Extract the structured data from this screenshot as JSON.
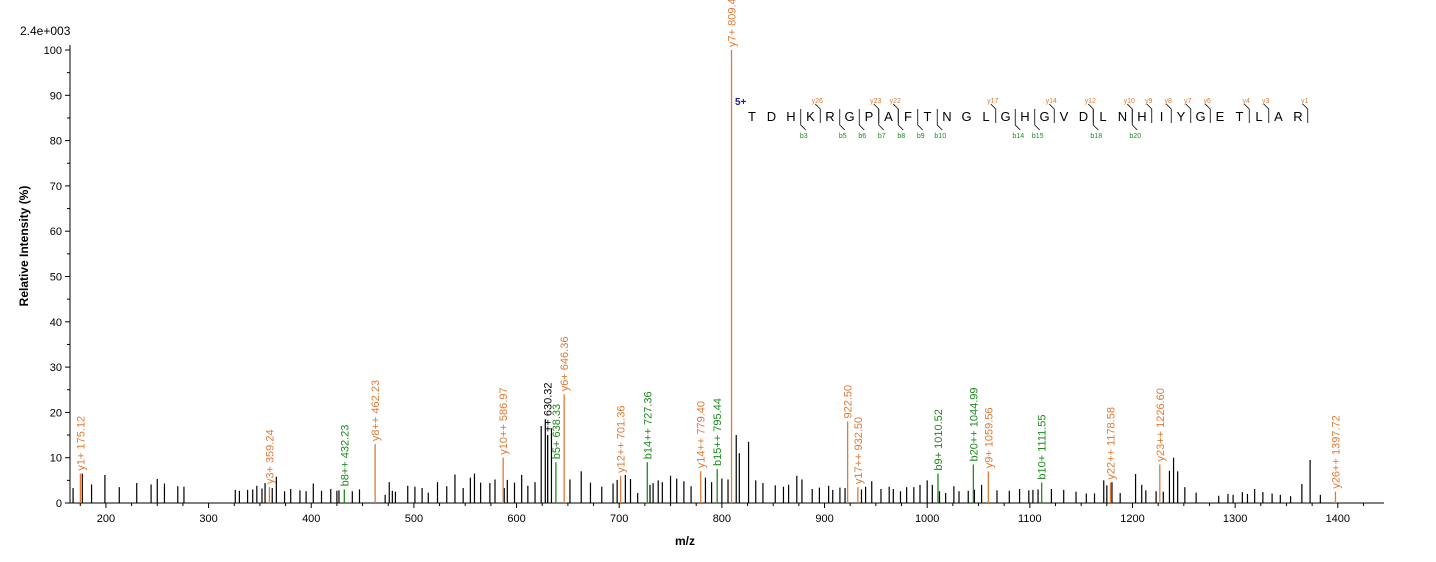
{
  "colors": {
    "y": "#e07a35",
    "b": "#1e8a1e",
    "other": "#000000",
    "charge": "#1a1aa0"
  },
  "chart_data": {
    "type": "bar",
    "scale_label": "2.4e+003",
    "xlabel": "m/z",
    "ylabel": "Relative Intensity (%)",
    "xlim": [
      165,
      1445
    ],
    "ylim": [
      0,
      100
    ],
    "x_ticks": [
      200,
      300,
      400,
      500,
      600,
      700,
      800,
      900,
      1000,
      1100,
      1200,
      1300,
      1400
    ],
    "y_ticks": [
      0,
      10,
      20,
      30,
      40,
      50,
      60,
      70,
      80,
      90,
      100
    ],
    "grid": false,
    "annotated_peaks": [
      {
        "mz": 175.12,
        "intensity": 6.5,
        "type": "y",
        "label": "y1+ 175.12"
      },
      {
        "mz": 359.24,
        "intensity": 3.5,
        "type": "y",
        "label": "y3+ 359.24"
      },
      {
        "mz": 432.23,
        "intensity": 3.0,
        "type": "b",
        "label": "b8++ 432.23"
      },
      {
        "mz": 462.23,
        "intensity": 13.0,
        "type": "y",
        "label": "y8++ 462.23"
      },
      {
        "mz": 586.97,
        "intensity": 10.0,
        "type": "y",
        "label": "y10++ 586.97"
      },
      {
        "mz": 630.32,
        "intensity": 15.0,
        "type": "other",
        "label": "++ 630.32"
      },
      {
        "mz": 638.33,
        "intensity": 9.0,
        "type": "b",
        "label": "b5+ 638.33"
      },
      {
        "mz": 646.36,
        "intensity": 24.0,
        "type": "y",
        "label": "y6+ 646.36"
      },
      {
        "mz": 701.36,
        "intensity": 6.0,
        "type": "y",
        "label": "y12++ 701.36"
      },
      {
        "mz": 727.36,
        "intensity": 9.0,
        "type": "b",
        "label": "b14++ 727.36"
      },
      {
        "mz": 779.4,
        "intensity": 7.0,
        "type": "y",
        "label": "y14++ 779.40"
      },
      {
        "mz": 795.44,
        "intensity": 7.5,
        "type": "b",
        "label": "b15++ 795.44"
      },
      {
        "mz": 809.41,
        "intensity": 100,
        "type": "y",
        "label": "y7+ 809.41"
      },
      {
        "mz": 922.5,
        "intensity": 18.0,
        "type": "y",
        "label": "922.50"
      },
      {
        "mz": 932.5,
        "intensity": 3.5,
        "type": "y",
        "label": "y17++ 932.50"
      },
      {
        "mz": 1010.52,
        "intensity": 6.5,
        "type": "b",
        "label": "b9+ 1010.52"
      },
      {
        "mz": 1044.99,
        "intensity": 8.5,
        "type": "b",
        "label": "b20++ 1044.99"
      },
      {
        "mz": 1059.56,
        "intensity": 7.0,
        "type": "y",
        "label": "y9+ 1059.56"
      },
      {
        "mz": 1111.55,
        "intensity": 4.5,
        "type": "b",
        "label": "b10+ 1111.55"
      },
      {
        "mz": 1178.58,
        "intensity": 4.5,
        "type": "y",
        "label": "y22++ 1178.58"
      },
      {
        "mz": 1226.6,
        "intensity": 8.5,
        "type": "y",
        "label": "y23++ 1226.60"
      },
      {
        "mz": 1397.72,
        "intensity": 2.5,
        "type": "y",
        "label": "y26++ 1397.72"
      }
    ],
    "other_peaks": [
      [
        168,
        3.3
      ],
      [
        177,
        6.5
      ],
      [
        186,
        4.1
      ],
      [
        199,
        6.2
      ],
      [
        213,
        3.5
      ],
      [
        230,
        4.4
      ],
      [
        244,
        4.1
      ],
      [
        250,
        5.3
      ],
      [
        257,
        4.3
      ],
      [
        270,
        3.7
      ],
      [
        276,
        3.6
      ],
      [
        326,
        2.9
      ],
      [
        330,
        2.7
      ],
      [
        338,
        2.9
      ],
      [
        343,
        3.0
      ],
      [
        347,
        3.8
      ],
      [
        352,
        3.2
      ],
      [
        355,
        4.4
      ],
      [
        362,
        3.3
      ],
      [
        366,
        5.8
      ],
      [
        374,
        2.6
      ],
      [
        380,
        3.1
      ],
      [
        389,
        2.8
      ],
      [
        395,
        2.6
      ],
      [
        402,
        4.3
      ],
      [
        410,
        2.7
      ],
      [
        419,
        3.1
      ],
      [
        425,
        2.7
      ],
      [
        427,
        2.8
      ],
      [
        440,
        2.6
      ],
      [
        447,
        3.0
      ],
      [
        472,
        1.8
      ],
      [
        476,
        4.6
      ],
      [
        479,
        2.7
      ],
      [
        482,
        2.5
      ],
      [
        494,
        3.8
      ],
      [
        501,
        3.6
      ],
      [
        508,
        3.3
      ],
      [
        514,
        2.3
      ],
      [
        523,
        4.6
      ],
      [
        532,
        3.7
      ],
      [
        540,
        6.3
      ],
      [
        548,
        3.3
      ],
      [
        555,
        5.6
      ],
      [
        559,
        6.5
      ],
      [
        565,
        4.5
      ],
      [
        574,
        4.4
      ],
      [
        579,
        5.2
      ],
      [
        588,
        3.3
      ],
      [
        591,
        5.1
      ],
      [
        598,
        4.5
      ],
      [
        605,
        6.2
      ],
      [
        611,
        3.8
      ],
      [
        618,
        4.6
      ],
      [
        624,
        17.0
      ],
      [
        628,
        18.5
      ],
      [
        634,
        16.5
      ],
      [
        652,
        5.2
      ],
      [
        663,
        7.0
      ],
      [
        672,
        4.5
      ],
      [
        683,
        3.6
      ],
      [
        694,
        4.3
      ],
      [
        698,
        5.1
      ],
      [
        706,
        6.2
      ],
      [
        711,
        5.3
      ],
      [
        718,
        2.2
      ],
      [
        730,
        4.0
      ],
      [
        733,
        4.4
      ],
      [
        738,
        5.0
      ],
      [
        742,
        4.6
      ],
      [
        750,
        6.0
      ],
      [
        756,
        5.4
      ],
      [
        763,
        4.8
      ],
      [
        770,
        3.7
      ],
      [
        784,
        5.6
      ],
      [
        790,
        4.6
      ],
      [
        800,
        5.4
      ],
      [
        806,
        5.2
      ],
      [
        814,
        15.0
      ],
      [
        817,
        11.0
      ],
      [
        826,
        13.5
      ],
      [
        833,
        5.0
      ],
      [
        840,
        4.4
      ],
      [
        852,
        3.9
      ],
      [
        860,
        3.6
      ],
      [
        865,
        4.0
      ],
      [
        873,
        6.0
      ],
      [
        878,
        5.2
      ],
      [
        888,
        3.1
      ],
      [
        895,
        3.4
      ],
      [
        904,
        3.8
      ],
      [
        908,
        2.9
      ],
      [
        915,
        3.4
      ],
      [
        920,
        3.3
      ],
      [
        936,
        3.0
      ],
      [
        940,
        3.6
      ],
      [
        946,
        4.8
      ],
      [
        955,
        3.1
      ],
      [
        963,
        3.6
      ],
      [
        967,
        3.1
      ],
      [
        974,
        2.6
      ],
      [
        980,
        3.5
      ],
      [
        987,
        3.5
      ],
      [
        993,
        4.0
      ],
      [
        1000,
        5.0
      ],
      [
        1005,
        4.0
      ],
      [
        1012,
        2.6
      ],
      [
        1018,
        2.2
      ],
      [
        1026,
        3.7
      ],
      [
        1031,
        2.6
      ],
      [
        1040,
        2.7
      ],
      [
        1046,
        2.9
      ],
      [
        1053,
        4.0
      ],
      [
        1068,
        2.8
      ],
      [
        1080,
        2.7
      ],
      [
        1090,
        3.1
      ],
      [
        1099,
        2.8
      ],
      [
        1103,
        2.9
      ],
      [
        1108,
        3.0
      ],
      [
        1121,
        3.1
      ],
      [
        1133,
        2.9
      ],
      [
        1145,
        2.5
      ],
      [
        1155,
        2.1
      ],
      [
        1163,
        2.1
      ],
      [
        1172,
        5.0
      ],
      [
        1175,
        3.9
      ],
      [
        1180,
        4.6
      ],
      [
        1188,
        2.2
      ],
      [
        1203,
        6.4
      ],
      [
        1209,
        4.0
      ],
      [
        1213,
        2.8
      ],
      [
        1223,
        2.6
      ],
      [
        1230,
        2.5
      ],
      [
        1236,
        7.1
      ],
      [
        1240,
        10.0
      ],
      [
        1244,
        7.0
      ],
      [
        1251,
        3.5
      ],
      [
        1262,
        2.3
      ],
      [
        1284,
        1.6
      ],
      [
        1293,
        2.0
      ],
      [
        1298,
        1.8
      ],
      [
        1307,
        2.4
      ],
      [
        1312,
        2.0
      ],
      [
        1319,
        3.1
      ],
      [
        1327,
        2.4
      ],
      [
        1336,
        2.1
      ],
      [
        1344,
        1.8
      ],
      [
        1354,
        1.5
      ],
      [
        1365,
        4.2
      ],
      [
        1373,
        9.5
      ],
      [
        1383,
        1.8
      ]
    ],
    "peptide": {
      "charge": "5+",
      "sequence": [
        "T",
        "D",
        "H",
        "K",
        "R",
        "G",
        "P",
        "A",
        "F",
        "T",
        "N",
        "G",
        "L",
        "G",
        "H",
        "G",
        "V",
        "D",
        "L",
        "N",
        "H",
        "I",
        "Y",
        "G",
        "E",
        "T",
        "L",
        "A",
        "R"
      ],
      "y_ions": [
        {
          "label": "y26",
          "after": 3
        },
        {
          "label": "y23",
          "after": 6
        },
        {
          "label": "y22",
          "after": 7
        },
        {
          "label": "y17",
          "after": 12
        },
        {
          "label": "y14",
          "after": 15
        },
        {
          "label": "y12",
          "after": 17
        },
        {
          "label": "y10",
          "after": 19
        },
        {
          "label": "y9",
          "after": 20
        },
        {
          "label": "y8",
          "after": 21
        },
        {
          "label": "y7",
          "after": 22
        },
        {
          "label": "y6",
          "after": 23
        },
        {
          "label": "y4",
          "after": 25
        },
        {
          "label": "y3",
          "after": 26
        },
        {
          "label": "y1",
          "after": 28
        }
      ],
      "b_ions": [
        {
          "label": "b3",
          "after": 3
        },
        {
          "label": "b5",
          "after": 5
        },
        {
          "label": "b6",
          "after": 6
        },
        {
          "label": "b7",
          "after": 7
        },
        {
          "label": "b8",
          "after": 8
        },
        {
          "label": "b9",
          "after": 9
        },
        {
          "label": "b10",
          "after": 10
        },
        {
          "label": "b14",
          "after": 14
        },
        {
          "label": "b15",
          "after": 15
        },
        {
          "label": "b18",
          "after": 18
        },
        {
          "label": "b20",
          "after": 20
        }
      ]
    }
  }
}
